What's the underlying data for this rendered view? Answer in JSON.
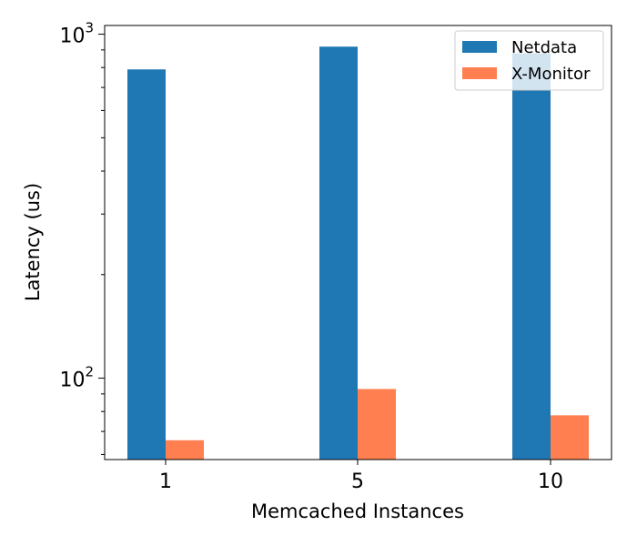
{
  "chart_data": {
    "type": "bar",
    "categories": [
      "1",
      "5",
      "10"
    ],
    "series": [
      {
        "name": "Netdata",
        "color": "#1f77b4",
        "values": [
          790,
          920,
          880
        ]
      },
      {
        "name": "X-Monitor",
        "color": "#ff7f50",
        "values": [
          66,
          93,
          78
        ]
      }
    ],
    "xlabel": "Memcached Instances",
    "ylabel": "Latency (us)",
    "y_scale": "log",
    "ylim": [
      58,
      1060
    ],
    "y_major_ticks": [
      {
        "value": 100,
        "base": "10",
        "exp": "2"
      },
      {
        "value": 1000,
        "base": "10",
        "exp": "3"
      }
    ],
    "y_minor_ticks": [
      60,
      70,
      80,
      90,
      200,
      300,
      400,
      500,
      600,
      700,
      800,
      900
    ],
    "grid": false,
    "legend_position": "top-right"
  }
}
